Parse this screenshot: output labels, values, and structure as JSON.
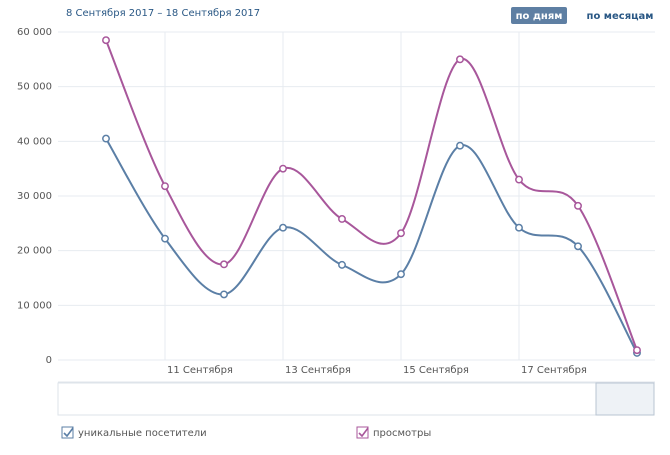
{
  "chart_data": {
    "type": "line",
    "title": "8 Сентября 2017 – 18 Сентября 2017",
    "buttons": [
      "по дням",
      "по месяцам"
    ],
    "categories": [
      null,
      "11 Сентября",
      null,
      "13 Сентября",
      null,
      "15 Сентября",
      null,
      "17 Сентября",
      null,
      null
    ],
    "series": [
      {
        "name": "уникальные посетители",
        "color": "#5b7fa6",
        "values": [
          40500,
          22200,
          12000,
          24200,
          17400,
          15700,
          39200,
          24200,
          20800,
          1300
        ]
      },
      {
        "name": "просмотры",
        "color": "#a8579b",
        "values": [
          58500,
          31800,
          17500,
          35000,
          25800,
          23200,
          55000,
          33000,
          28200,
          1800
        ]
      }
    ],
    "ylim": [
      0,
      60000
    ],
    "yticks": [
      0,
      {
        "value": 10000,
        "label": "10 000"
      },
      {
        "value": 20000,
        "label": "20 000"
      },
      {
        "value": 30000,
        "label": "30 000"
      },
      {
        "value": 40000,
        "label": "40 000"
      },
      {
        "value": 50000,
        "label": "50 000"
      },
      {
        "value": 60000,
        "label": "60 000"
      }
    ],
    "grid": true
  }
}
